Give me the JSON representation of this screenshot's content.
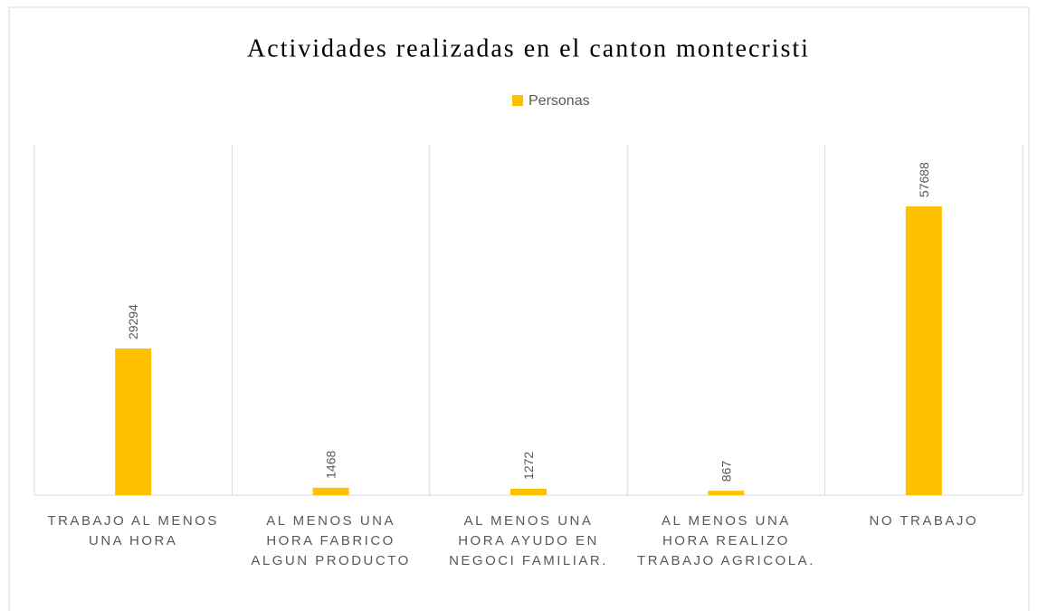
{
  "chart_data": {
    "type": "bar",
    "title": "Actividades realizadas en el canton montecristi",
    "categories": [
      "TRABAJO AL MENOS UNA HORA",
      "AL MENOS UNA HORA FABRICO ALGUN PRODUCTO",
      "AL MENOS UNA HORA AYUDO EN NEGOCI FAMILIAR.",
      "AL MENOS UNA HORA REALIZO TRABAJO AGRICOLA.",
      "NO TRABAJO"
    ],
    "series": [
      {
        "name": "Personas",
        "color": "#ffc000",
        "values": [
          29294,
          1468,
          1272,
          867,
          57688
        ]
      }
    ],
    "ylim": [
      0,
      70000
    ],
    "legend": "top",
    "grid": "vertical"
  }
}
